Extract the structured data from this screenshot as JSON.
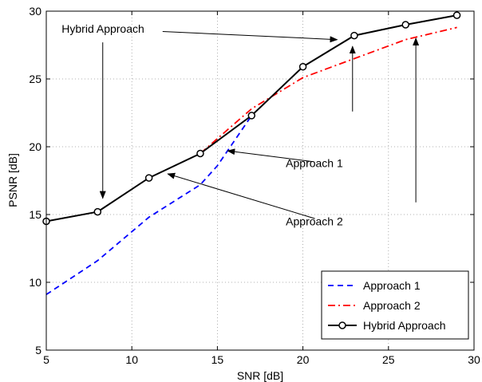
{
  "chart_data": {
    "type": "line",
    "xlabel": "SNR [dB]",
    "ylabel": "PSNR [dB]",
    "xlim": [
      5,
      30
    ],
    "ylim": [
      5,
      30
    ],
    "xticks": [
      5,
      10,
      15,
      20,
      25,
      30
    ],
    "yticks": [
      5,
      10,
      15,
      20,
      25,
      30
    ],
    "grid": true,
    "legend_position": "bottom-right",
    "series": [
      {
        "name": "Approach 1",
        "color": "#0000ff",
        "style": "dashed",
        "x": [
          5,
          8,
          11,
          14,
          15,
          17
        ],
        "y": [
          9.1,
          11.6,
          14.8,
          17.2,
          18.6,
          22.3
        ]
      },
      {
        "name": "Approach 2",
        "color": "#ff0000",
        "style": "dashdot",
        "x": [
          14,
          17,
          20,
          23,
          26,
          29
        ],
        "y": [
          19.5,
          22.8,
          25.1,
          26.5,
          27.9,
          28.8
        ]
      },
      {
        "name": "Hybrid Approach",
        "color": "#000000",
        "style": "solid",
        "marker": "circle",
        "x": [
          5,
          8,
          11,
          14,
          17,
          20,
          23,
          26,
          29
        ],
        "y": [
          14.5,
          15.2,
          17.7,
          19.5,
          22.3,
          25.9,
          28.2,
          29.0,
          29.7
        ]
      }
    ],
    "annotations": [
      {
        "text": "Hybrid Approach",
        "text_x": 5.9,
        "text_y": 28.4,
        "arrows": [
          {
            "from": [
              11.8,
              28.5
            ],
            "to": [
              22.0,
              27.9
            ]
          },
          {
            "from": [
              8.3,
              27.7
            ],
            "to": [
              8.3,
              16.2
            ]
          }
        ]
      },
      {
        "text": "Approach 1",
        "text_x": 19.0,
        "text_y": 18.5,
        "arrows": [
          {
            "from": [
              20.6,
              18.9
            ],
            "to": [
              15.6,
              19.7
            ]
          },
          {
            "from": [
              22.9,
              22.6
            ],
            "to": [
              22.9,
              27.4
            ]
          }
        ]
      },
      {
        "text": "Approach 2",
        "text_x": 19.0,
        "text_y": 14.2,
        "arrows": [
          {
            "from": [
              20.7,
              14.7
            ],
            "to": [
              12.1,
              18.0
            ]
          },
          {
            "from": [
              26.6,
              15.9
            ],
            "to": [
              26.6,
              28.0
            ]
          }
        ]
      }
    ]
  }
}
